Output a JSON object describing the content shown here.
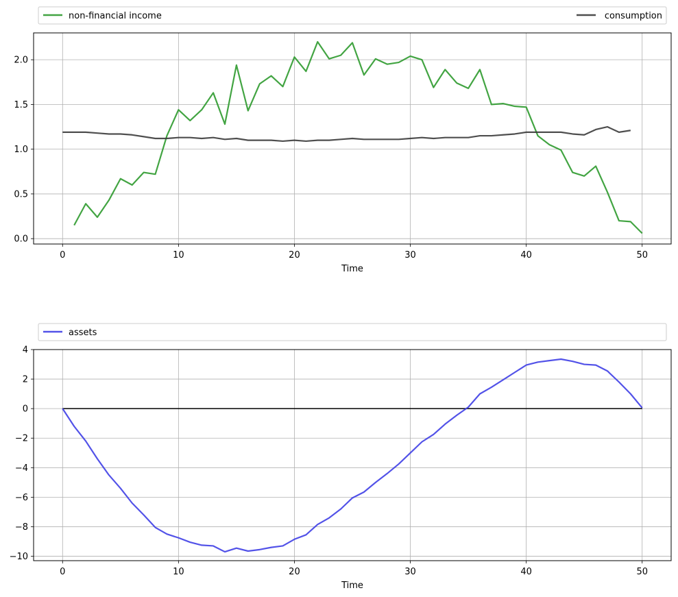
{
  "chart_data": [
    {
      "type": "line",
      "xlabel": "Time",
      "xlim": [
        -2.5,
        52.5
      ],
      "ylim": [
        -0.06,
        2.3
      ],
      "xticks": [
        0,
        10,
        20,
        30,
        40,
        50
      ],
      "yticks": [
        0.0,
        0.5,
        1.0,
        1.5,
        2.0
      ],
      "ytick_labels": [
        "0.0",
        "0.5",
        "1.0",
        "1.5",
        "2.0"
      ],
      "grid": true,
      "legend": "top, spanning full width",
      "series": [
        {
          "name": "non-financial income",
          "color": "#2e9a2e",
          "x": [
            1,
            2,
            3,
            4,
            5,
            6,
            7,
            8,
            9,
            10,
            11,
            12,
            13,
            14,
            15,
            16,
            17,
            18,
            19,
            20,
            21,
            22,
            23,
            24,
            25,
            26,
            27,
            28,
            29,
            30,
            31,
            32,
            33,
            34,
            35,
            36,
            37,
            38,
            39,
            40,
            41,
            42,
            43,
            44,
            45,
            46,
            47,
            48,
            49,
            50
          ],
          "values": [
            0.15,
            0.39,
            0.24,
            0.43,
            0.67,
            0.6,
            0.74,
            0.72,
            1.15,
            1.44,
            1.32,
            1.44,
            1.63,
            1.28,
            1.94,
            1.43,
            1.73,
            1.82,
            1.7,
            2.03,
            1.87,
            2.2,
            2.01,
            2.05,
            2.19,
            1.83,
            2.01,
            1.95,
            1.97,
            2.04,
            2.0,
            1.69,
            1.89,
            1.74,
            1.68,
            1.89,
            1.5,
            1.51,
            1.48,
            1.47,
            1.15,
            1.05,
            0.99,
            0.74,
            0.7,
            0.81,
            0.52,
            0.2,
            0.19,
            0.06
          ]
        },
        {
          "name": "consumption",
          "color": "#3b3b3b",
          "x": [
            0,
            1,
            2,
            3,
            4,
            5,
            6,
            7,
            8,
            9,
            10,
            11,
            12,
            13,
            14,
            15,
            16,
            17,
            18,
            19,
            20,
            21,
            22,
            23,
            24,
            25,
            26,
            27,
            28,
            29,
            30,
            31,
            32,
            33,
            34,
            35,
            36,
            37,
            38,
            39,
            40,
            41,
            42,
            43,
            44,
            45,
            46,
            47,
            48,
            49
          ],
          "values": [
            1.19,
            1.19,
            1.19,
            1.18,
            1.17,
            1.17,
            1.16,
            1.14,
            1.12,
            1.12,
            1.13,
            1.13,
            1.12,
            1.13,
            1.11,
            1.12,
            1.1,
            1.1,
            1.1,
            1.09,
            1.1,
            1.09,
            1.1,
            1.1,
            1.11,
            1.12,
            1.11,
            1.11,
            1.11,
            1.11,
            1.12,
            1.13,
            1.12,
            1.13,
            1.13,
            1.13,
            1.15,
            1.15,
            1.16,
            1.17,
            1.19,
            1.19,
            1.19,
            1.19,
            1.17,
            1.16,
            1.22,
            1.25,
            1.19,
            1.21
          ]
        }
      ]
    },
    {
      "type": "line",
      "xlabel": "Time",
      "xlim": [
        -2.5,
        52.5
      ],
      "ylim": [
        -10.3,
        4.0
      ],
      "xticks": [
        0,
        10,
        20,
        30,
        40,
        50
      ],
      "yticks": [
        -10,
        -8,
        -6,
        -4,
        -2,
        0,
        2,
        4
      ],
      "ytick_labels": [
        "−10",
        "−8",
        "−6",
        "−4",
        "−2",
        "0",
        "2",
        "4"
      ],
      "grid": true,
      "legend": "top, spanning full width",
      "reference_line": {
        "y": 0,
        "x": [
          0,
          50
        ],
        "color": "#000000"
      },
      "series": [
        {
          "name": "assets",
          "color": "#3f3fe6",
          "x": [
            0,
            1,
            2,
            3,
            4,
            5,
            6,
            7,
            8,
            9,
            10,
            11,
            12,
            13,
            14,
            15,
            16,
            17,
            18,
            19,
            20,
            21,
            22,
            23,
            24,
            25,
            26,
            27,
            28,
            29,
            30,
            31,
            32,
            33,
            34,
            35,
            36,
            37,
            38,
            39,
            40,
            41,
            42,
            43,
            44,
            45,
            46,
            47,
            48,
            49,
            50
          ],
          "values": [
            0.0,
            -1.2,
            -2.2,
            -3.4,
            -4.5,
            -5.4,
            -6.4,
            -7.2,
            -8.05,
            -8.5,
            -8.75,
            -9.05,
            -9.25,
            -9.3,
            -9.7,
            -9.45,
            -9.65,
            -9.55,
            -9.4,
            -9.3,
            -8.85,
            -8.55,
            -7.85,
            -7.4,
            -6.8,
            -6.05,
            -5.65,
            -5.0,
            -4.4,
            -3.75,
            -3.0,
            -2.25,
            -1.75,
            -1.05,
            -0.45,
            0.1,
            1.0,
            1.45,
            1.95,
            2.45,
            2.95,
            3.15,
            3.25,
            3.35,
            3.2,
            3.0,
            2.95,
            2.55,
            1.8,
            1.0,
            0.05
          ]
        }
      ]
    }
  ]
}
